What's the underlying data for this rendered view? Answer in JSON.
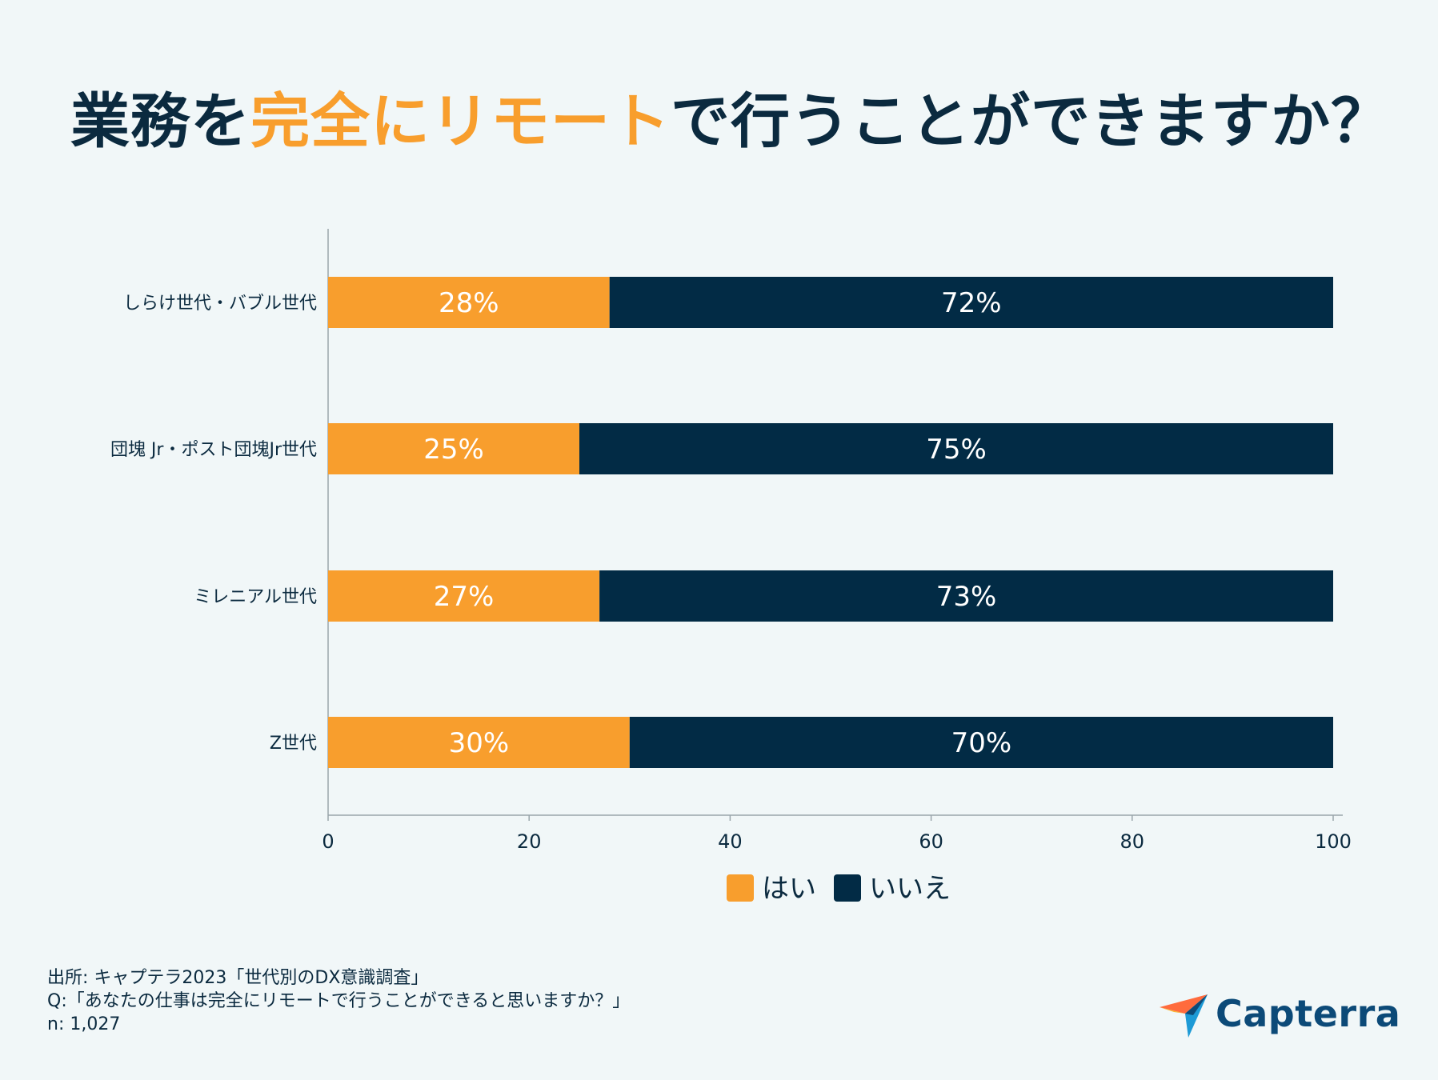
{
  "title": {
    "part1": "業務を",
    "accent": "完全にリモート",
    "part2": "で行うことができますか？"
  },
  "colors": {
    "yes": "#f89e2d",
    "no": "#022b45",
    "accent": "#f89e2d",
    "text": "#0b2a3f",
    "background": "#f1f7f8"
  },
  "chart_data": {
    "type": "bar",
    "orientation": "horizontal",
    "stacked": true,
    "categories": [
      "しらけ世代・バブル世代",
      "団塊 Jr・ポスト団塊Jr世代",
      "ミレニアル世代",
      "Z世代"
    ],
    "series": [
      {
        "name": "はい",
        "values": [
          28,
          25,
          27,
          30
        ],
        "labels": [
          "28%",
          "25%",
          "27%",
          "30%"
        ]
      },
      {
        "name": "いいえ",
        "values": [
          72,
          75,
          73,
          70
        ],
        "labels": [
          "72%",
          "75%",
          "73%",
          "70%"
        ]
      }
    ],
    "xlim": [
      0,
      100
    ],
    "xticks": [
      0,
      20,
      40,
      60,
      80,
      100
    ],
    "legend_position": "bottom-center",
    "grid": false
  },
  "footer": {
    "source": "出所: キャプテラ2023「世代別のDX意識調査」",
    "question": "Q:「あなたの仕事は完全にリモートで行うことができると思いますか？」",
    "sample": "n: 1,027"
  },
  "logo": {
    "text": "Capterra",
    "icon": "capterra-arrow-icon"
  }
}
